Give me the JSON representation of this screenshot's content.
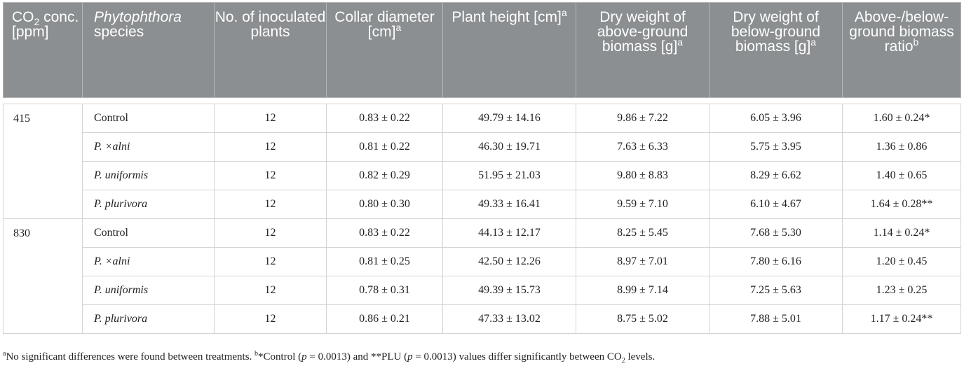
{
  "headers": {
    "co2": {
      "pre": "CO",
      "sub": "2",
      "post": " conc. [ppm]"
    },
    "species": {
      "italic": "Phytophthora",
      "rest": " species"
    },
    "plants": "No. of inoculated plants",
    "collar": {
      "text": "Collar diameter [cm]",
      "sup": "a"
    },
    "height": {
      "text": "Plant height [cm]",
      "sup": "a"
    },
    "above": {
      "text": "Dry weight of above-ground biomass [g]",
      "sup": "a"
    },
    "below": {
      "text": "Dry weight of below-ground biomass [g]",
      "sup": "a"
    },
    "ratio": {
      "text": "Above-/below-ground biomass ratio",
      "sup": "b"
    }
  },
  "groups": [
    {
      "co2": "415",
      "rows": [
        {
          "species": "Control",
          "species_italic": false,
          "n": "12",
          "collar": "0.83 ± 0.22",
          "height": "49.79 ± 14.16",
          "above": "9.86 ± 7.22",
          "below": "6.05 ± 3.96",
          "ratio": "1.60 ± 0.24*"
        },
        {
          "species": "P. ×alni",
          "species_italic": true,
          "n": "12",
          "collar": "0.81 ± 0.22",
          "height": "46.30 ± 19.71",
          "above": "7.63 ± 6.33",
          "below": "5.75 ± 3.95",
          "ratio": "1.36 ± 0.86"
        },
        {
          "species": "P. uniformis",
          "species_italic": true,
          "n": "12",
          "collar": "0.82 ± 0.29",
          "height": "51.95 ± 21.03",
          "above": "9.80 ± 8.83",
          "below": "8.29 ± 6.62",
          "ratio": "1.40 ± 0.65"
        },
        {
          "species": "P. plurivora",
          "species_italic": true,
          "n": "12",
          "collar": "0.80 ± 0.30",
          "height": "49.33 ± 16.41",
          "above": "9.59 ± 7.10",
          "below": "6.10 ± 4.67",
          "ratio": "1.64 ± 0.28**"
        }
      ]
    },
    {
      "co2": "830",
      "rows": [
        {
          "species": "Control",
          "species_italic": false,
          "n": "12",
          "collar": "0.83 ± 0.22",
          "height": "44.13 ± 12.17",
          "above": "8.25 ± 5.45",
          "below": "7.68 ± 5.30",
          "ratio": "1.14 ± 0.24*"
        },
        {
          "species": "P. ×alni",
          "species_italic": true,
          "n": "12",
          "collar": "0.81 ± 0.25",
          "height": "42.50 ± 12.26",
          "above": "8.97 ± 7.01",
          "below": "7.80 ± 6.16",
          "ratio": "1.20 ± 0.45"
        },
        {
          "species": "P. uniformis",
          "species_italic": true,
          "n": "12",
          "collar": "0.78 ± 0.31",
          "height": "49.39 ± 15.73",
          "above": "8.99 ± 7.14",
          "below": "7.25 ± 5.63",
          "ratio": "1.23 ± 0.25"
        },
        {
          "species": "P. plurivora",
          "species_italic": true,
          "n": "12",
          "collar": "0.86 ± 0.21",
          "height": "47.33 ± 13.02",
          "above": "8.75 ± 5.02",
          "below": "7.88 ± 5.01",
          "ratio": "1.17 ± 0.24**"
        }
      ]
    }
  ],
  "footnote": {
    "a_mark": "a",
    "a_text": "No significant differences were found between treatments. ",
    "b_mark": "b",
    "b_text_1": "*Control (",
    "b_p1_var": "p",
    "b_p1_val": " = 0.0013) and **PLU (",
    "b_p2_var": "p",
    "b_p2_val": " = 0.0013) values differ significantly between CO",
    "b_sub": "2",
    "b_end": " levels."
  },
  "colors": {
    "header_bg": "#8b8f91",
    "header_text": "#ffffff",
    "grid": "#d3d3d3"
  }
}
